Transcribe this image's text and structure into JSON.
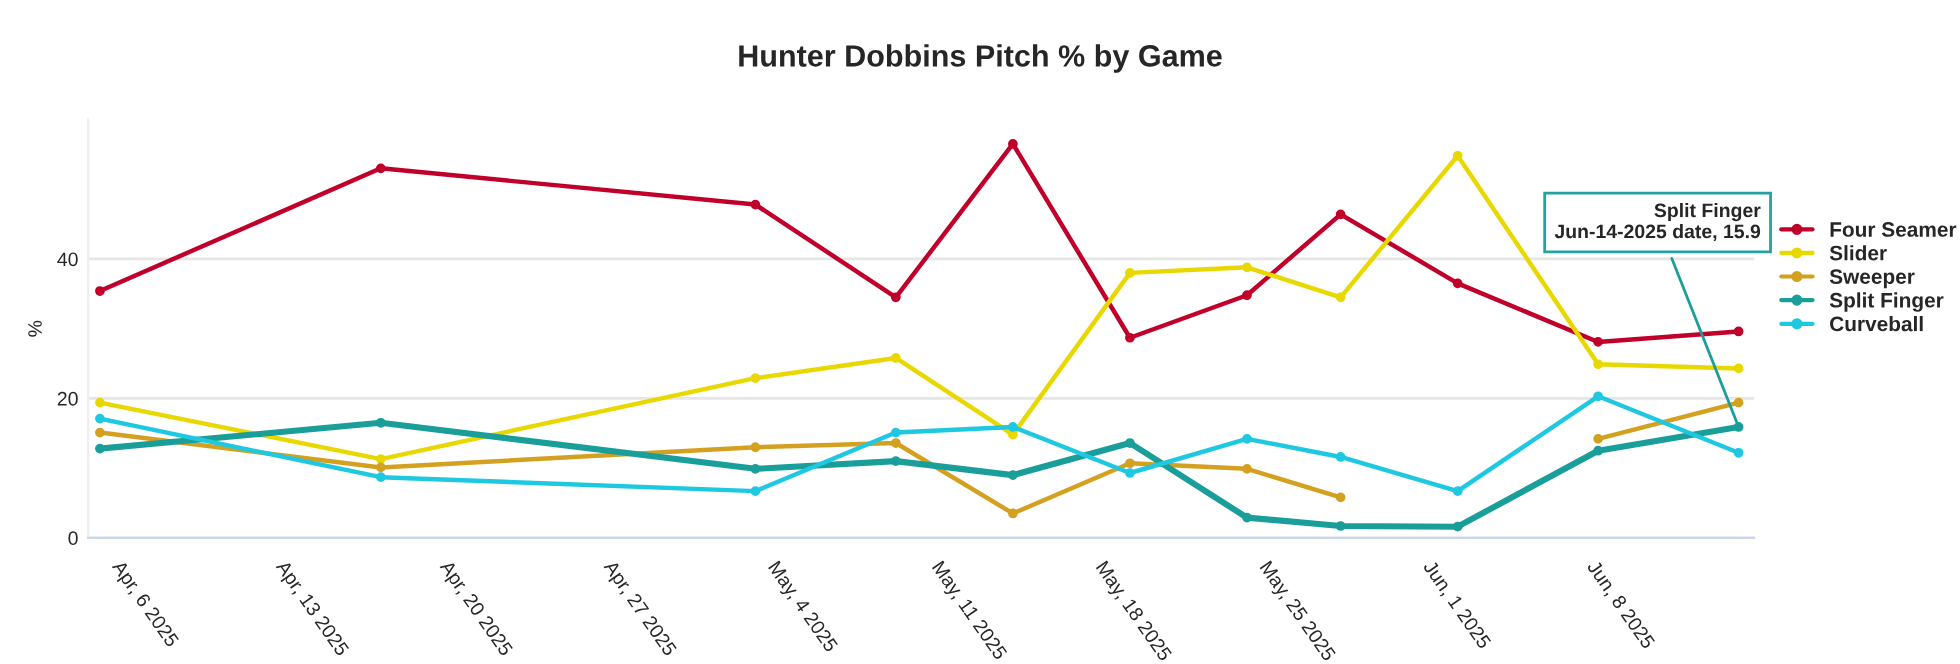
{
  "chart_data": {
    "type": "line",
    "title": "Hunter Dobbins Pitch % by Game",
    "ylabel": "%",
    "x": [
      "2025-04-05",
      "2025-04-17",
      "2025-05-03",
      "2025-05-09",
      "2025-05-14",
      "2025-05-19",
      "2025-05-24",
      "2025-05-28",
      "2025-06-02",
      "2025-06-08",
      "2025-06-14"
    ],
    "series": [
      {
        "name": "Four Seamer",
        "color": "#c0002a",
        "values": [
          35.4,
          53,
          47.8,
          34.5,
          56.5,
          28.7,
          34.8,
          46.4,
          36.5,
          28.1,
          29.6
        ]
      },
      {
        "name": "Slider",
        "color": "#e8d800",
        "values": [
          19.4,
          11.3,
          22.9,
          25.8,
          14.8,
          38,
          38.8,
          34.5,
          54.8,
          24.9,
          24.3
        ]
      },
      {
        "name": "Sweeper",
        "color": "#d4a020",
        "values": [
          15.1,
          10.1,
          13.0,
          13.6,
          3.5,
          10.7,
          9.9,
          5.8,
          null,
          14.2,
          19.4
        ]
      },
      {
        "name": "Split Finger",
        "color": "#1a9e9a",
        "values": [
          12.8,
          16.5,
          9.9,
          11.0,
          9.0,
          13.6,
          2.9,
          1.7,
          1.6,
          12.5,
          15.9
        ]
      },
      {
        "name": "Curveball",
        "color": "#1ec8e0",
        "values": [
          17.1,
          8.7,
          6.7,
          15.1,
          15.9,
          9.3,
          14.2,
          11.6,
          6.7,
          20.3,
          12.2
        ]
      }
    ],
    "xlim": [
      "2025-04-04T12:00",
      "2025-06-14T16:00"
    ],
    "xticks": [
      {
        "value": "2025-04-06",
        "label": "Apr, 6 2025"
      },
      {
        "value": "2025-04-13",
        "label": "Apr, 13 2025"
      },
      {
        "value": "2025-04-20",
        "label": "Apr, 20 2025"
      },
      {
        "value": "2025-04-27",
        "label": "Apr, 27 2025"
      },
      {
        "value": "2025-05-04",
        "label": "May, 4 2025"
      },
      {
        "value": "2025-05-11",
        "label": "May, 11 2025"
      },
      {
        "value": "2025-05-18",
        "label": "May, 18 2025"
      },
      {
        "value": "2025-05-25",
        "label": "May, 25 2025"
      },
      {
        "value": "2025-06-01",
        "label": "Jun, 1 2025"
      },
      {
        "value": "2025-06-08",
        "label": "Jun, 8 2025"
      }
    ],
    "ylim": [
      0,
      60
    ],
    "yticks": [
      0,
      20,
      40
    ],
    "grid": "y",
    "legend": "right",
    "marker": "circle",
    "line_style": "solid",
    "annotations": [
      {
        "text": "Split Finger\nJun-14-2025 date, 15.9",
        "x": "2025-06-14",
        "y": 15.9
      }
    ]
  }
}
